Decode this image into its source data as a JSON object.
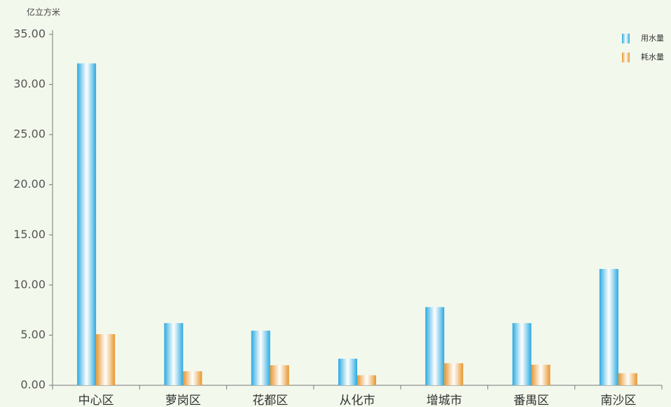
{
  "chart_data": {
    "type": "bar",
    "y_unit": "亿立方米",
    "categories": [
      "中心区",
      "萝岗区",
      "花都区",
      "从化市",
      "增城市",
      "番禺区",
      "南沙区"
    ],
    "series": [
      {
        "name": "用水量",
        "color": "#29a9e1",
        "values": [
          32.1,
          6.2,
          5.45,
          2.65,
          7.8,
          6.2,
          11.6
        ]
      },
      {
        "name": "耗水量",
        "color": "#e8952a",
        "values": [
          5.1,
          1.4,
          2.0,
          1.0,
          2.2,
          2.05,
          1.2
        ]
      }
    ],
    "ylim": [
      0,
      35
    ],
    "yticks": [
      {
        "value": 0,
        "label": "0.00"
      },
      {
        "value": 5,
        "label": "5.00"
      },
      {
        "value": 10,
        "label": "10.00"
      },
      {
        "value": 15,
        "label": "15.00"
      },
      {
        "value": 20,
        "label": "20.00"
      },
      {
        "value": 25,
        "label": "25.00"
      },
      {
        "value": 30,
        "label": "30.00"
      },
      {
        "value": 35,
        "label": "35.00"
      }
    ],
    "grid": false,
    "legend": "top-right"
  }
}
